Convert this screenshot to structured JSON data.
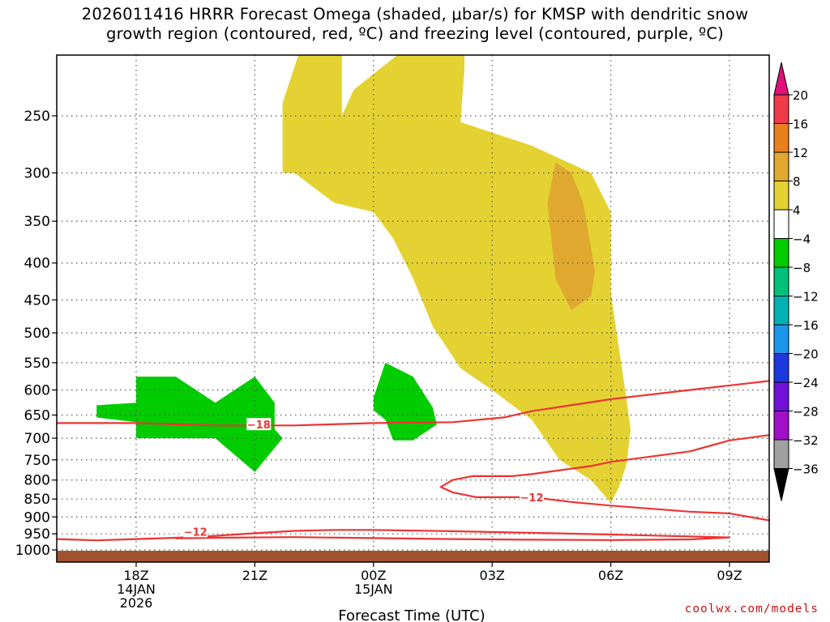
{
  "title": {
    "line1": "2026011416 HRRR Forecast Omega (shaded, μbar/s) for KMSP with dendritic snow",
    "line2": "growth region (contoured, red, ºC) and freezing level (contoured, purple, ºC)"
  },
  "credit": "coolwx.com/models",
  "chart_data": {
    "type": "contour",
    "xlabel": "Forecast Time (UTC)",
    "ylabel": "",
    "x_ticks": [
      {
        "t": 0,
        "lines": [
          "18Z",
          "14JAN",
          "2026"
        ]
      },
      {
        "t": 3,
        "lines": [
          "21Z"
        ]
      },
      {
        "t": 6,
        "lines": [
          "00Z",
          "15JAN"
        ]
      },
      {
        "t": 9,
        "lines": [
          "03Z"
        ]
      },
      {
        "t": 12,
        "lines": [
          "06Z"
        ]
      },
      {
        "t": 15,
        "lines": [
          "09Z"
        ]
      }
    ],
    "xlim": [
      -2,
      16
    ],
    "y_ticks": [
      250,
      300,
      350,
      400,
      450,
      500,
      550,
      600,
      650,
      700,
      750,
      800,
      850,
      900,
      950,
      1000
    ],
    "ylim": [
      200,
      1020
    ],
    "y_unit": "hPa",
    "grid": true,
    "colorbar": {
      "unit": "μbar/s",
      "tick_labels": [
        "20",
        "16",
        "12",
        "8",
        "4",
        "−4",
        "−8",
        "−12",
        "−16",
        "−20",
        "−24",
        "−28",
        "−32",
        "−36"
      ],
      "colors": [
        "#f03a4a",
        "#e8801e",
        "#e0a82e",
        "#e4d232",
        "#ffffff",
        "#00cc00",
        "#00c07a",
        "#00b2b2",
        "#1a96ea",
        "#1e38e0",
        "#7010d8",
        "#a010c8",
        "#a0a0a0"
      ],
      "top_color": "#e0107a",
      "bottom_color": "#000000"
    },
    "shaded_regions": [
      {
        "category": "4 to 8",
        "color": "#e4d232",
        "polygon": [
          [
            5.2,
            130
          ],
          [
            5.2,
            250
          ],
          [
            5.5,
            230
          ],
          [
            6.6,
            200
          ],
          [
            7.0,
            205
          ],
          [
            7.0,
            170
          ],
          [
            7.6,
            170
          ],
          [
            8.3,
            175
          ],
          [
            8.3,
            215
          ],
          [
            8.2,
            255
          ],
          [
            10.0,
            275
          ],
          [
            11.5,
            300
          ],
          [
            12.0,
            340
          ],
          [
            12.0,
            440
          ],
          [
            12.4,
            620
          ],
          [
            12.5,
            680
          ],
          [
            12.4,
            760
          ],
          [
            12.2,
            820
          ],
          [
            12.0,
            860
          ],
          [
            11.5,
            800
          ],
          [
            10.7,
            750
          ],
          [
            10.0,
            660
          ],
          [
            9.0,
            600
          ],
          [
            8.2,
            560
          ],
          [
            7.5,
            490
          ],
          [
            7.0,
            420
          ],
          [
            6.5,
            370
          ],
          [
            6.0,
            340
          ],
          [
            5.0,
            330
          ],
          [
            4.0,
            300
          ],
          [
            3.7,
            300
          ],
          [
            3.7,
            240
          ],
          [
            4.1,
            170
          ],
          [
            5.2,
            130
          ]
        ]
      },
      {
        "category": "8 to 12",
        "color": "#e0a82e",
        "polygon": [
          [
            11.0,
            300
          ],
          [
            11.3,
            330
          ],
          [
            11.6,
            410
          ],
          [
            11.5,
            445
          ],
          [
            11.0,
            465
          ],
          [
            10.6,
            420
          ],
          [
            10.4,
            330
          ],
          [
            10.6,
            290
          ],
          [
            11.0,
            300
          ]
        ]
      },
      {
        "category": "-8 to -4",
        "color": "#00cc00",
        "polygon": [
          [
            -1.0,
            630
          ],
          [
            0.0,
            625
          ],
          [
            0.0,
            575
          ],
          [
            1.0,
            575
          ],
          [
            2.0,
            625
          ],
          [
            3.0,
            575
          ],
          [
            3.5,
            625
          ],
          [
            3.5,
            680
          ],
          [
            3.7,
            700
          ],
          [
            3.0,
            780
          ],
          [
            2.0,
            700
          ],
          [
            0.0,
            700
          ],
          [
            0.0,
            665
          ],
          [
            -1.0,
            655
          ],
          [
            -1.0,
            630
          ]
        ]
      },
      {
        "category": "-8 to -4",
        "color": "#00cc00",
        "polygon": [
          [
            6.0,
            615
          ],
          [
            6.3,
            550
          ],
          [
            7.0,
            575
          ],
          [
            7.5,
            635
          ],
          [
            7.6,
            670
          ],
          [
            7.0,
            705
          ],
          [
            6.5,
            705
          ],
          [
            6.3,
            660
          ],
          [
            6.0,
            640
          ],
          [
            6.0,
            615
          ]
        ]
      }
    ],
    "contours": [
      {
        "level": -18,
        "color": "#ee3333",
        "label": "−18",
        "label_at": [
          3.1,
          670
        ],
        "points": [
          [
            -2,
            667
          ],
          [
            0,
            667
          ],
          [
            2,
            672
          ],
          [
            4,
            672
          ],
          [
            6,
            667
          ],
          [
            8,
            665
          ],
          [
            9.3,
            655
          ],
          [
            10,
            642
          ],
          [
            12,
            618
          ],
          [
            14,
            600
          ],
          [
            16,
            583
          ]
        ]
      },
      {
        "level": -12,
        "color": "#ee3333",
        "label": "−12",
        "label_at": [
          10.0,
          845
        ],
        "points": [
          [
            16,
            693
          ],
          [
            15,
            705
          ],
          [
            14,
            730
          ],
          [
            12,
            755
          ],
          [
            11.5,
            765
          ],
          [
            10.0,
            785
          ],
          [
            9.5,
            790
          ],
          [
            8.5,
            790
          ],
          [
            8.0,
            800
          ],
          [
            7.7,
            818
          ],
          [
            8.0,
            832
          ],
          [
            8.6,
            845
          ],
          [
            9.0,
            845
          ],
          [
            10,
            845
          ],
          [
            11,
            858
          ],
          [
            12,
            868
          ],
          [
            14,
            885
          ],
          [
            15,
            890
          ],
          [
            16,
            910
          ]
        ]
      },
      {
        "level": -12,
        "color": "#ee3333",
        "label": "−12",
        "label_at": [
          1.5,
          943
        ],
        "points": [
          [
            -2,
            966
          ],
          [
            -1,
            970
          ],
          [
            0,
            966
          ],
          [
            1,
            962
          ],
          [
            2,
            956
          ],
          [
            3,
            948
          ],
          [
            4,
            941
          ],
          [
            5,
            938
          ],
          [
            6,
            938
          ],
          [
            8,
            942
          ],
          [
            10,
            947
          ],
          [
            12,
            952
          ],
          [
            13,
            955
          ],
          [
            14,
            958
          ],
          [
            15,
            961
          ],
          [
            14,
            967
          ],
          [
            12,
            969
          ],
          [
            10,
            968
          ],
          [
            8,
            966
          ],
          [
            6,
            963
          ],
          [
            4,
            960
          ],
          [
            2,
            962
          ],
          [
            1,
            964
          ]
        ]
      }
    ],
    "surface_band": {
      "color": "#a0522d",
      "from": 1000,
      "to": 1020
    }
  }
}
